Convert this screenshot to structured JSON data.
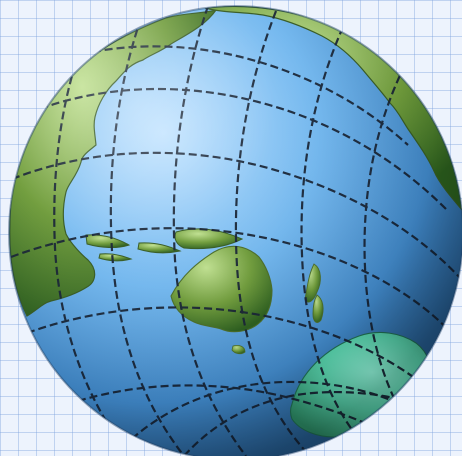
{
  "scene": {
    "description_icon": "globe-icon",
    "background": "grid-paper",
    "colors": {
      "paper": "#edf3fd",
      "grid_line": "#7ea4de",
      "ocean_light": "#b7dcff",
      "ocean_mid": "#66aeea",
      "ocean_dark": "#2e6faa",
      "land_light": "#b8d98b",
      "land_mid": "#6f9c3a",
      "land_dark": "#2c5f1f",
      "antarctica_light": "#7ff2d3",
      "antarctica_dark": "#2f9a6a",
      "graticule": "#172334"
    }
  }
}
